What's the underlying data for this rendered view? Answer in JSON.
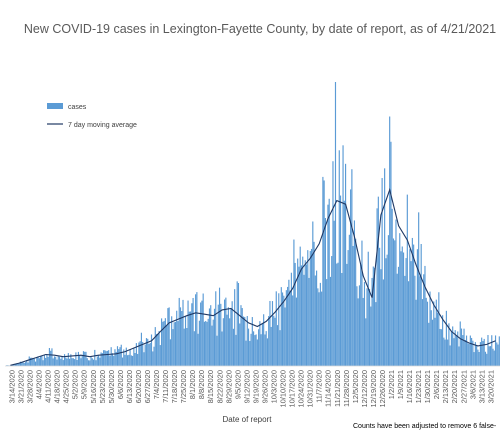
{
  "chart_data": {
    "type": "bar",
    "title": "New COVID-19 cases in Lexington-Fayette County, by date of report, as of 4/21/2021",
    "xlabel": "Date of report",
    "ylabel": "",
    "note": "Counts have been adjusted to remove 6 false-",
    "colors": {
      "bar": "#5B9BD5",
      "line": "#1F3864"
    },
    "legend": {
      "position": "top-left",
      "items": [
        "cases",
        "7 day moving average"
      ]
    },
    "grid": false,
    "x_tick_labels": [
      "3/14/2020",
      "3/21/2020",
      "3/28/2020",
      "4/4/2020",
      "4/11/2020",
      "4/18/2020",
      "4/25/2020",
      "5/2/2020",
      "5/9/2020",
      "5/16/2020",
      "5/23/2020",
      "5/30/2020",
      "6/6/2020",
      "6/13/2020",
      "6/20/2020",
      "6/27/2020",
      "7/4/2020",
      "7/11/2020",
      "7/18/2020",
      "7/25/2020",
      "8/1/2020",
      "8/8/2020",
      "8/15/2020",
      "8/22/2020",
      "8/29/2020",
      "9/5/2020",
      "9/12/2020",
      "9/19/2020",
      "9/26/2020",
      "10/3/2020",
      "10/10/2020",
      "10/17/2020",
      "10/24/2020",
      "10/31/2020",
      "11/7/2020",
      "11/14/2020",
      "11/21/2020",
      "11/28/2020",
      "12/5/2020",
      "12/12/2020",
      "12/19/2020",
      "12/26/2020",
      "1/2/2021",
      "1/9/2021",
      "1/16/2021",
      "1/23/2021",
      "1/30/2021",
      "2/6/2021",
      "2/13/2021",
      "2/20/2021",
      "2/27/2021",
      "3/6/2021",
      "3/13/2021",
      "3/20/2021"
    ],
    "weekly_average_cases": [
      1,
      4,
      8,
      12,
      16,
      15,
      13,
      14,
      15,
      13,
      15,
      16,
      17,
      20,
      25,
      30,
      35,
      48,
      60,
      65,
      70,
      74,
      72,
      70,
      78,
      80,
      70,
      60,
      55,
      62,
      75,
      90,
      108,
      135,
      150,
      170,
      205,
      230,
      225,
      180,
      125,
      95,
      210,
      245,
      195,
      175,
      140,
      110,
      85,
      65,
      48,
      38,
      32,
      28,
      30,
      35
    ],
    "peak_daily_cases": 395,
    "ylim": [
      0,
      420
    ]
  }
}
